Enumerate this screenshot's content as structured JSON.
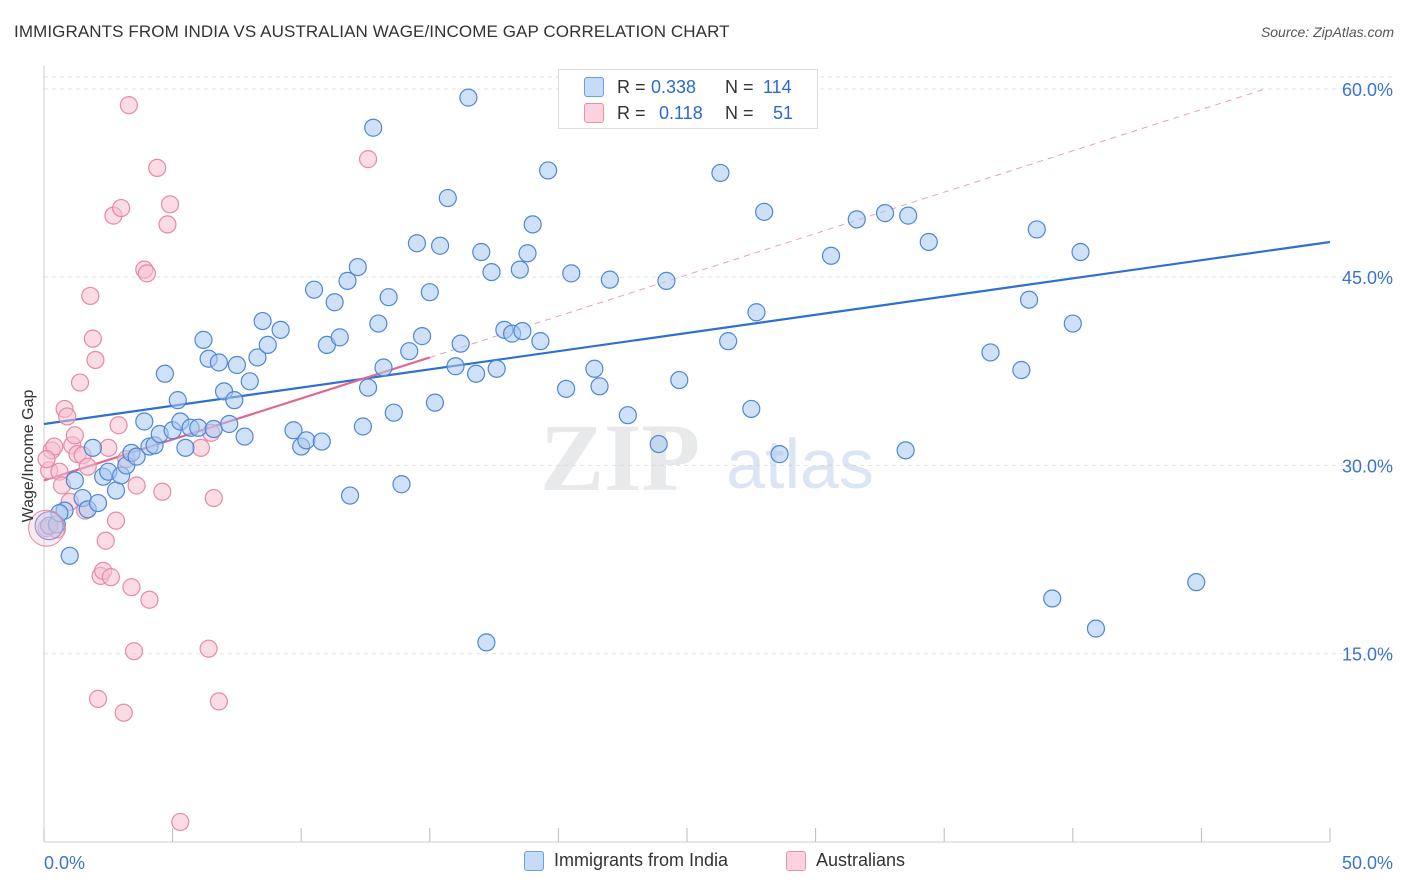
{
  "title": "IMMIGRANTS FROM INDIA VS AUSTRALIAN WAGE/INCOME GAP CORRELATION CHART",
  "source": "Source: ZipAtlas.com",
  "watermark": {
    "zip": "ZIP",
    "atlas": "atlas"
  },
  "stats": {
    "r_label": "R =",
    "n_label": "N =",
    "rows": [
      {
        "r": "0.338",
        "n": "114",
        "color": "#a8c8f0",
        "border": "#6a9fe0"
      },
      {
        "r": "0.118",
        "n": "51",
        "color": "#f8c0d0",
        "border": "#e890a8"
      }
    ]
  },
  "legend": [
    {
      "label": "Immigrants from India",
      "color": "#a8c8f0",
      "border": "#6a9fe0"
    },
    {
      "label": "Australians",
      "color": "#f8c0d0",
      "border": "#e890a8"
    }
  ],
  "chart_data": {
    "type": "scatter",
    "title": "IMMIGRANTS FROM INDIA VS AUSTRALIAN WAGE/INCOME GAP CORRELATION CHART",
    "xlabel": "",
    "ylabel": "Wage/Income Gap",
    "xlim": [
      0,
      50
    ],
    "ylim": [
      0,
      61.5
    ],
    "x_tick_labels": [
      "0.0%",
      "50.0%"
    ],
    "y_ticks": [
      15,
      30,
      45,
      60
    ],
    "y_tick_labels": [
      "15.0%",
      "30.0%",
      "45.0%",
      "60.0%"
    ],
    "grid": true,
    "legend_position": "bottom",
    "colors": {
      "india": "#2f6fd0",
      "australians": "#e06890"
    },
    "series": [
      {
        "name": "Immigrants from India",
        "color": "#a8c8f0",
        "stroke": "#4f86d6",
        "trend": {
          "x": [
            0,
            50
          ],
          "y": [
            33.3,
            47.8
          ],
          "style": "solid"
        },
        "points": [
          [
            0.2,
            25.2
          ],
          [
            0.5,
            25.3
          ],
          [
            0.8,
            26.4
          ],
          [
            1.0,
            22.8
          ],
          [
            1.2,
            28.8
          ],
          [
            1.5,
            27.4
          ],
          [
            1.7,
            26.5
          ],
          [
            1.9,
            31.4
          ],
          [
            2.1,
            27.0
          ],
          [
            2.3,
            29.1
          ],
          [
            2.5,
            29.5
          ],
          [
            2.8,
            28.0
          ],
          [
            3.0,
            29.2
          ],
          [
            3.2,
            30.0
          ],
          [
            3.4,
            31.0
          ],
          [
            3.6,
            30.7
          ],
          [
            3.9,
            33.5
          ],
          [
            4.1,
            31.5
          ],
          [
            4.3,
            31.6
          ],
          [
            4.5,
            32.5
          ],
          [
            4.7,
            37.3
          ],
          [
            5.0,
            32.8
          ],
          [
            5.2,
            35.2
          ],
          [
            5.3,
            33.5
          ],
          [
            5.5,
            31.4
          ],
          [
            5.7,
            33.0
          ],
          [
            6.0,
            33.0
          ],
          [
            6.2,
            40.0
          ],
          [
            6.4,
            38.5
          ],
          [
            6.6,
            32.9
          ],
          [
            6.8,
            38.2
          ],
          [
            7.0,
            35.9
          ],
          [
            7.2,
            33.3
          ],
          [
            7.4,
            35.2
          ],
          [
            7.5,
            38.0
          ],
          [
            7.8,
            32.3
          ],
          [
            8.0,
            36.7
          ],
          [
            8.3,
            38.6
          ],
          [
            8.5,
            41.5
          ],
          [
            8.7,
            39.6
          ],
          [
            9.2,
            40.8
          ],
          [
            9.7,
            32.8
          ],
          [
            10.0,
            31.5
          ],
          [
            10.2,
            32.0
          ],
          [
            10.5,
            44.0
          ],
          [
            10.8,
            31.9
          ],
          [
            11.0,
            39.6
          ],
          [
            11.3,
            43.0
          ],
          [
            11.5,
            40.2
          ],
          [
            11.8,
            44.7
          ],
          [
            11.9,
            27.6
          ],
          [
            12.2,
            45.8
          ],
          [
            12.4,
            33.1
          ],
          [
            12.6,
            36.2
          ],
          [
            12.8,
            56.9
          ],
          [
            13.0,
            41.3
          ],
          [
            13.2,
            37.8
          ],
          [
            13.4,
            43.4
          ],
          [
            13.6,
            34.2
          ],
          [
            13.9,
            28.5
          ],
          [
            14.2,
            39.1
          ],
          [
            14.5,
            47.7
          ],
          [
            14.7,
            40.3
          ],
          [
            15.0,
            43.8
          ],
          [
            15.2,
            35.0
          ],
          [
            15.4,
            47.5
          ],
          [
            15.7,
            51.3
          ],
          [
            16.0,
            37.9
          ],
          [
            16.2,
            39.7
          ],
          [
            16.5,
            59.3
          ],
          [
            16.8,
            37.3
          ],
          [
            17.0,
            47.0
          ],
          [
            17.2,
            15.9
          ],
          [
            17.4,
            45.4
          ],
          [
            17.6,
            37.7
          ],
          [
            17.9,
            40.8
          ],
          [
            18.2,
            40.5
          ],
          [
            18.5,
            45.6
          ],
          [
            18.6,
            40.7
          ],
          [
            18.8,
            46.9
          ],
          [
            19.0,
            49.2
          ],
          [
            19.3,
            39.9
          ],
          [
            19.6,
            53.5
          ],
          [
            20.3,
            36.1
          ],
          [
            20.5,
            45.3
          ],
          [
            21.4,
            37.7
          ],
          [
            21.6,
            36.3
          ],
          [
            22.0,
            44.8
          ],
          [
            22.7,
            34.0
          ],
          [
            23.9,
            31.7
          ],
          [
            24.2,
            44.7
          ],
          [
            24.7,
            36.8
          ],
          [
            26.3,
            53.3
          ],
          [
            26.6,
            39.9
          ],
          [
            27.5,
            34.5
          ],
          [
            27.7,
            42.2
          ],
          [
            28.0,
            50.2
          ],
          [
            28.6,
            30.9
          ],
          [
            30.6,
            46.7
          ],
          [
            31.6,
            49.6
          ],
          [
            32.7,
            50.1
          ],
          [
            33.5,
            31.2
          ],
          [
            33.6,
            49.9
          ],
          [
            34.4,
            47.8
          ],
          [
            36.8,
            39.0
          ],
          [
            38.0,
            37.6
          ],
          [
            38.3,
            43.2
          ],
          [
            38.6,
            48.8
          ],
          [
            39.2,
            19.4
          ],
          [
            40.0,
            41.3
          ],
          [
            40.3,
            47.0
          ],
          [
            40.9,
            17.0
          ],
          [
            44.8,
            20.7
          ],
          [
            0.6,
            26.2
          ]
        ]
      },
      {
        "name": "Australians",
        "color": "#f8c0d0",
        "stroke": "#e48aa6",
        "trend": {
          "x": [
            0,
            15.0
          ],
          "y": [
            28.8,
            38.6
          ],
          "style": "solid"
        },
        "trend_dashed": {
          "x": [
            15.0,
            47.5
          ],
          "y": [
            38.6,
            60.0
          ]
        },
        "points": [
          [
            0.1,
            25.0
          ],
          [
            0.2,
            29.6
          ],
          [
            0.3,
            31.2
          ],
          [
            0.4,
            31.5
          ],
          [
            0.5,
            24.9
          ],
          [
            0.6,
            29.5
          ],
          [
            0.7,
            28.4
          ],
          [
            0.8,
            34.5
          ],
          [
            0.9,
            33.9
          ],
          [
            1.0,
            27.1
          ],
          [
            1.1,
            31.6
          ],
          [
            1.2,
            32.4
          ],
          [
            1.3,
            30.9
          ],
          [
            1.4,
            36.6
          ],
          [
            1.5,
            30.8
          ],
          [
            1.6,
            26.4
          ],
          [
            1.7,
            29.9
          ],
          [
            1.8,
            43.5
          ],
          [
            1.9,
            40.1
          ],
          [
            2.0,
            38.4
          ],
          [
            2.1,
            11.4
          ],
          [
            2.2,
            21.2
          ],
          [
            2.3,
            21.6
          ],
          [
            2.4,
            24.0
          ],
          [
            2.5,
            31.4
          ],
          [
            2.6,
            21.1
          ],
          [
            2.7,
            49.9
          ],
          [
            2.8,
            25.6
          ],
          [
            2.9,
            33.2
          ],
          [
            3.0,
            50.5
          ],
          [
            3.1,
            10.3
          ],
          [
            3.2,
            30.5
          ],
          [
            3.3,
            58.7
          ],
          [
            3.4,
            20.3
          ],
          [
            3.5,
            15.2
          ],
          [
            3.6,
            28.4
          ],
          [
            3.9,
            45.6
          ],
          [
            4.0,
            45.3
          ],
          [
            4.1,
            19.3
          ],
          [
            4.4,
            53.7
          ],
          [
            4.6,
            27.9
          ],
          [
            4.8,
            49.2
          ],
          [
            4.9,
            50.8
          ],
          [
            5.3,
            1.6
          ],
          [
            6.1,
            31.4
          ],
          [
            6.4,
            15.4
          ],
          [
            6.5,
            32.6
          ],
          [
            6.6,
            27.4
          ],
          [
            6.8,
            11.2
          ],
          [
            12.6,
            54.4
          ],
          [
            0.1,
            30.5
          ]
        ]
      }
    ]
  }
}
